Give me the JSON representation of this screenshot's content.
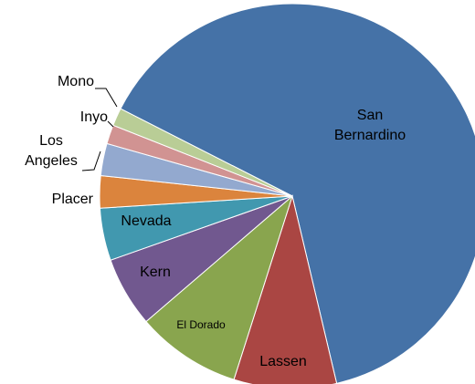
{
  "chart_data": {
    "type": "pie",
    "categories": [
      "San Bernardino",
      "Lassen",
      "El Dorado",
      "Kern",
      "Nevada",
      "Placer",
      "Los Angeles",
      "Inyo",
      "Mono"
    ],
    "values": [
      63.8,
      8.6,
      8.8,
      5.9,
      4.4,
      2.7,
      2.7,
      1.6,
      1.5
    ],
    "colors": [
      "#4572a7",
      "#aa4643",
      "#89a54e",
      "#71588f",
      "#4198af",
      "#db843d",
      "#93a9cf",
      "#d19392",
      "#b9cd96"
    ]
  }
}
